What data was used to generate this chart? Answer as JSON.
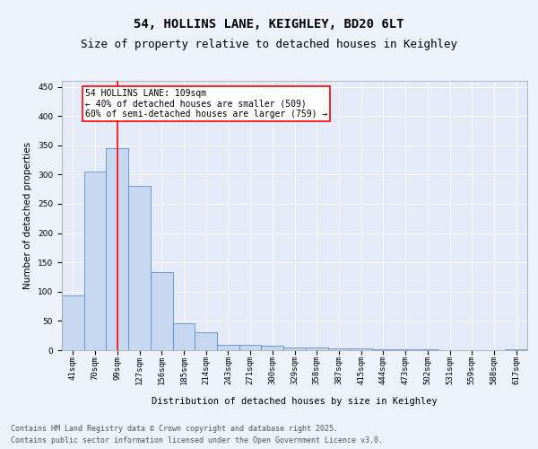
{
  "title_line1": "54, HOLLINS LANE, KEIGHLEY, BD20 6LT",
  "title_line2": "Size of property relative to detached houses in Keighley",
  "xlabel": "Distribution of detached houses by size in Keighley",
  "ylabel": "Number of detached properties",
  "categories": [
    "41sqm",
    "70sqm",
    "99sqm",
    "127sqm",
    "156sqm",
    "185sqm",
    "214sqm",
    "243sqm",
    "271sqm",
    "300sqm",
    "329sqm",
    "358sqm",
    "387sqm",
    "415sqm",
    "444sqm",
    "473sqm",
    "502sqm",
    "531sqm",
    "559sqm",
    "588sqm",
    "617sqm"
  ],
  "values": [
    93,
    305,
    345,
    280,
    133,
    46,
    30,
    9,
    9,
    7,
    5,
    5,
    3,
    3,
    2,
    1,
    1,
    0,
    0,
    0,
    2
  ],
  "bar_color": "#c5d8f0",
  "bar_edge_color": "#5a8fcc",
  "vline_x_index": 2,
  "vline_color": "red",
  "annotation_text": "54 HOLLINS LANE: 109sqm\n← 40% of detached houses are smaller (509)\n60% of semi-detached houses are larger (759) →",
  "annotation_box_color": "white",
  "annotation_box_edge": "red",
  "ylim": [
    0,
    460
  ],
  "yticks": [
    0,
    50,
    100,
    150,
    200,
    250,
    300,
    350,
    400,
    450
  ],
  "background_color": "#eef2fb",
  "plot_bg_color": "#e4eaf7",
  "footer_line1": "Contains HM Land Registry data © Crown copyright and database right 2025.",
  "footer_line2": "Contains public sector information licensed under the Open Government Licence v3.0.",
  "title_fontsize": 10,
  "subtitle_fontsize": 9,
  "axis_label_fontsize": 7.5,
  "tick_fontsize": 6.5,
  "annotation_fontsize": 7,
  "footer_fontsize": 6
}
